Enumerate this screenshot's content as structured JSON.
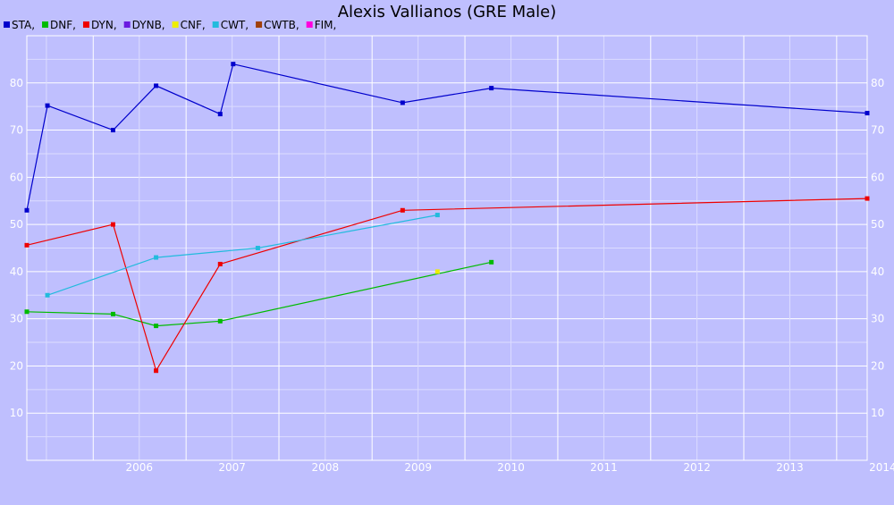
{
  "chart_data": {
    "type": "line",
    "title": "Alexis Vallianos (GRE Male)",
    "xlabel": "",
    "ylabel": "",
    "x_axis_type": "date",
    "xlim": [
      "2005-04-15",
      "2014-05-01"
    ],
    "ylim": [
      0,
      90
    ],
    "grid": true,
    "legend_position": "top-left",
    "x_ticks": [
      "2006",
      "2007",
      "2008",
      "2009",
      "2010",
      "2011",
      "2012",
      "2013",
      "2014"
    ],
    "y_ticks": [
      10,
      20,
      30,
      40,
      50,
      60,
      70,
      80
    ],
    "series": [
      {
        "name": "STA",
        "color": "#0000cc",
        "points": [
          {
            "x": "2005-04-15",
            "y": 53
          },
          {
            "x": "2005-07-05",
            "y": 75.2
          },
          {
            "x": "2006-03-20",
            "y": 70
          },
          {
            "x": "2006-09-05",
            "y": 79.4
          },
          {
            "x": "2007-05-15",
            "y": 73.4
          },
          {
            "x": "2007-07-05",
            "y": 84
          },
          {
            "x": "2009-05-01",
            "y": 75.8
          },
          {
            "x": "2010-04-15",
            "y": 78.9
          },
          {
            "x": "2014-05-01",
            "y": 73.6
          }
        ]
      },
      {
        "name": "DNF",
        "color": "#00bb00",
        "points": [
          {
            "x": "2005-04-15",
            "y": 31.5
          },
          {
            "x": "2006-03-20",
            "y": 31
          },
          {
            "x": "2006-09-05",
            "y": 28.5
          },
          {
            "x": "2007-05-15",
            "y": 29.5
          },
          {
            "x": "2010-04-15",
            "y": 42
          }
        ]
      },
      {
        "name": "DYN",
        "color": "#ee0000",
        "points": [
          {
            "x": "2005-04-15",
            "y": 45.6
          },
          {
            "x": "2006-03-20",
            "y": 50
          },
          {
            "x": "2006-09-05",
            "y": 19
          },
          {
            "x": "2007-05-15",
            "y": 41.6
          },
          {
            "x": "2009-05-01",
            "y": 53
          },
          {
            "x": "2014-05-01",
            "y": 55.5
          }
        ]
      },
      {
        "name": "DYNB",
        "color": "#6a1be0",
        "points": []
      },
      {
        "name": "CNF",
        "color": "#eeee00",
        "points": [
          {
            "x": "2009-09-15",
            "y": 40
          }
        ]
      },
      {
        "name": "CWT",
        "color": "#22bbdd",
        "points": [
          {
            "x": "2005-07-05",
            "y": 35
          },
          {
            "x": "2006-09-05",
            "y": 43
          },
          {
            "x": "2007-10-10",
            "y": 45
          },
          {
            "x": "2009-09-15",
            "y": 52
          }
        ]
      },
      {
        "name": "CWTB",
        "color": "#a0400a",
        "points": []
      },
      {
        "name": "FIM",
        "color": "#ff00dd",
        "points": []
      }
    ]
  }
}
